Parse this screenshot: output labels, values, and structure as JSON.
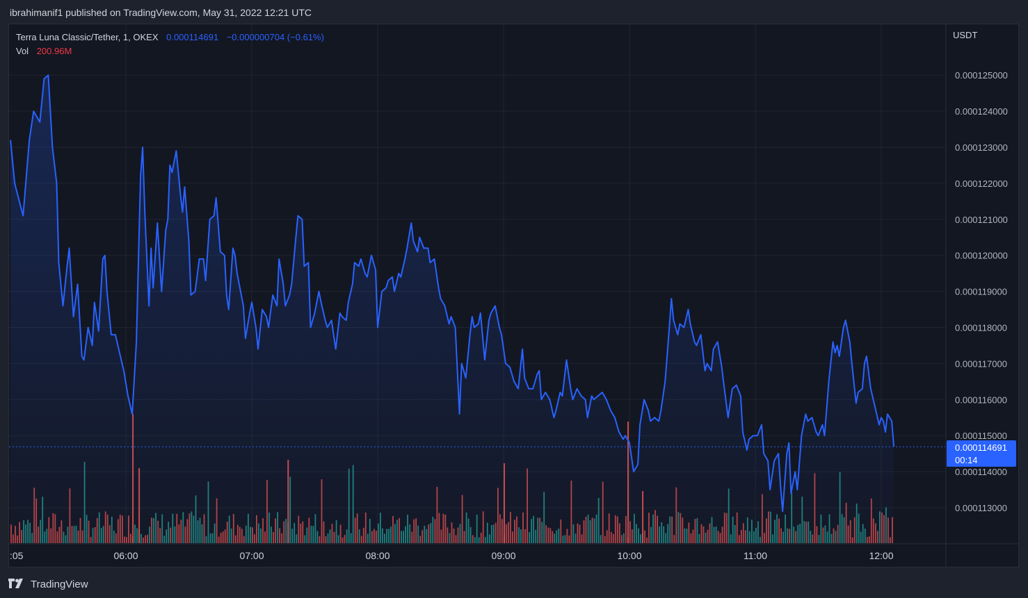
{
  "header": {
    "published_line": "ibrahimanif1 published on TradingView.com, May 31, 2022 12:21 UTC"
  },
  "legend": {
    "symbol": "Terra Luna Classic/Tether, 1, OKEX",
    "last_price": "0.000114691",
    "change": "−0.000000704 (−0.61%)",
    "vol_label": "Vol",
    "vol_value": "200.96M"
  },
  "price_scale": {
    "currency": "USDT",
    "current_price_label": "0.000114691",
    "countdown_label": "00:14"
  },
  "footer": {
    "brand": "TradingView"
  },
  "colors": {
    "line": "#2962ff",
    "up_volume": "#26a69a",
    "down_volume": "#ef5350",
    "background": "#131722",
    "grid": "#2a2e39"
  },
  "chart_data": {
    "type": "line",
    "x_label": "",
    "y_label": "",
    "x_ticks": [
      ":05",
      "06:00",
      "07:00",
      "08:00",
      "09:00",
      "10:00",
      "11:00",
      "12:00"
    ],
    "y_ticks": [
      "0.000113000",
      "0.000114000",
      "0.000115000",
      "0.000116000",
      "0.000117000",
      "0.000118000",
      "0.000119000",
      "0.000120000",
      "0.000121000",
      "0.000122000",
      "0.000123000",
      "0.000124000",
      "0.000125000"
    ],
    "y_range": [
      0.0001122,
      0.0001264
    ],
    "x_range_minutes": [
      305,
      755
    ],
    "last_value": 0.000114691,
    "series_keypoints": [
      [
        305,
        0.0001232
      ],
      [
        307,
        0.000122
      ],
      [
        311,
        0.0001211
      ],
      [
        314,
        0.0001232
      ],
      [
        316,
        0.000124
      ],
      [
        319,
        0.0001237
      ],
      [
        321,
        0.0001249
      ],
      [
        323,
        0.000125
      ],
      [
        325,
        0.000123
      ],
      [
        327,
        0.000122
      ],
      [
        328,
        0.0001198
      ],
      [
        330,
        0.0001186
      ],
      [
        332,
        0.0001197
      ],
      [
        333,
        0.0001202
      ],
      [
        335,
        0.0001183
      ],
      [
        337,
        0.0001192
      ],
      [
        339,
        0.0001172
      ],
      [
        340,
        0.0001171
      ],
      [
        342,
        0.000118
      ],
      [
        344,
        0.0001175
      ],
      [
        345,
        0.0001187
      ],
      [
        347,
        0.0001179
      ],
      [
        349,
        0.0001199
      ],
      [
        350,
        0.00012
      ],
      [
        351,
        0.000119
      ],
      [
        353,
        0.0001178
      ],
      [
        355,
        0.0001178
      ],
      [
        357,
        0.0001173
      ],
      [
        359,
        0.0001168
      ],
      [
        361,
        0.0001161
      ],
      [
        363,
        0.0001156
      ],
      [
        365,
        0.0001176
      ],
      [
        367,
        0.0001222
      ],
      [
        368,
        0.000123
      ],
      [
        369,
        0.0001212
      ],
      [
        371,
        0.0001186
      ],
      [
        372,
        0.0001202
      ],
      [
        373,
        0.0001191
      ],
      [
        375,
        0.0001209
      ],
      [
        377,
        0.000119
      ],
      [
        379,
        0.0001207
      ],
      [
        380,
        0.000121
      ],
      [
        381,
        0.0001225
      ],
      [
        382,
        0.0001223
      ],
      [
        384,
        0.0001229
      ],
      [
        386,
        0.0001217
      ],
      [
        387,
        0.0001212
      ],
      [
        388,
        0.0001219
      ],
      [
        390,
        0.0001204
      ],
      [
        391,
        0.0001189
      ],
      [
        393,
        0.000119
      ],
      [
        395,
        0.0001199
      ],
      [
        397,
        0.0001199
      ],
      [
        398,
        0.0001193
      ],
      [
        400,
        0.000121
      ],
      [
        402,
        0.0001211
      ],
      [
        403,
        0.0001216
      ],
      [
        405,
        0.0001201
      ],
      [
        407,
        0.00012
      ],
      [
        408,
        0.0001189
      ],
      [
        409,
        0.0001185
      ],
      [
        411,
        0.0001202
      ],
      [
        412,
        0.00012
      ],
      [
        413,
        0.0001195
      ],
      [
        415,
        0.0001189
      ],
      [
        416,
        0.0001186
      ],
      [
        417,
        0.0001177
      ],
      [
        419,
        0.0001184
      ],
      [
        420,
        0.0001187
      ],
      [
        422,
        0.000118
      ],
      [
        423,
        0.0001174
      ],
      [
        425,
        0.0001185
      ],
      [
        427,
        0.0001183
      ],
      [
        428,
        0.000118
      ],
      [
        430,
        0.0001189
      ],
      [
        432,
        0.0001186
      ],
      [
        433,
        0.0001199
      ],
      [
        435,
        0.0001192
      ],
      [
        436,
        0.0001186
      ],
      [
        438,
        0.0001189
      ],
      [
        439,
        0.0001192
      ],
      [
        441,
        0.0001205
      ],
      [
        442,
        0.0001211
      ],
      [
        444,
        0.000121
      ],
      [
        445,
        0.0001197
      ],
      [
        447,
        0.0001198
      ],
      [
        448,
        0.000118
      ],
      [
        450,
        0.0001184
      ],
      [
        452,
        0.000119
      ],
      [
        453,
        0.0001187
      ],
      [
        455,
        0.0001182
      ],
      [
        456,
        0.000118
      ],
      [
        458,
        0.0001182
      ],
      [
        460,
        0.0001174
      ],
      [
        462,
        0.0001184
      ],
      [
        463,
        0.0001183
      ],
      [
        465,
        0.0001182
      ],
      [
        466,
        0.0001187
      ],
      [
        468,
        0.0001192
      ],
      [
        469,
        0.0001198
      ],
      [
        471,
        0.0001197
      ],
      [
        472,
        0.0001199
      ],
      [
        474,
        0.0001195
      ],
      [
        475,
        0.0001194
      ],
      [
        477,
        0.00012
      ],
      [
        479,
        0.0001196
      ],
      [
        480,
        0.000118
      ],
      [
        482,
        0.000119
      ],
      [
        484,
        0.0001191
      ],
      [
        485,
        0.0001193
      ],
      [
        487,
        0.0001194
      ],
      [
        488,
        0.000119
      ],
      [
        490,
        0.0001195
      ],
      [
        491,
        0.0001194
      ],
      [
        493,
        0.0001199
      ],
      [
        494,
        0.0001202
      ],
      [
        496,
        0.0001209
      ],
      [
        497,
        0.0001204
      ],
      [
        499,
        0.0001201
      ],
      [
        500,
        0.0001205
      ],
      [
        502,
        0.0001202
      ],
      [
        504,
        0.0001202
      ],
      [
        505,
        0.0001198
      ],
      [
        507,
        0.0001199
      ],
      [
        509,
        0.0001191
      ],
      [
        510,
        0.0001188
      ],
      [
        512,
        0.0001186
      ],
      [
        514,
        0.0001181
      ],
      [
        515,
        0.0001183
      ],
      [
        517,
        0.000118
      ],
      [
        519,
        0.0001156
      ],
      [
        520,
        0.000117
      ],
      [
        522,
        0.0001166
      ],
      [
        524,
        0.0001178
      ],
      [
        525,
        0.0001183
      ],
      [
        526,
        0.000118
      ],
      [
        528,
        0.0001181
      ],
      [
        529,
        0.0001184
      ],
      [
        531,
        0.0001171
      ],
      [
        533,
        0.0001182
      ],
      [
        534,
        0.0001184
      ],
      [
        536,
        0.0001186
      ],
      [
        538,
        0.000118
      ],
      [
        539,
        0.0001178
      ],
      [
        541,
        0.000117
      ],
      [
        543,
        0.0001169
      ],
      [
        545,
        0.0001165
      ],
      [
        547,
        0.0001163
      ],
      [
        549,
        0.0001174
      ],
      [
        550,
        0.0001166
      ],
      [
        552,
        0.0001163
      ],
      [
        554,
        0.0001163
      ],
      [
        556,
        0.0001167
      ],
      [
        557,
        0.0001168
      ],
      [
        558,
        0.000116
      ],
      [
        560,
        0.0001162
      ],
      [
        562,
        0.000116
      ],
      [
        564,
        0.0001155
      ],
      [
        565,
        0.0001157
      ],
      [
        567,
        0.0001162
      ],
      [
        568,
        0.0001161
      ],
      [
        570,
        0.0001171
      ],
      [
        572,
        0.0001163
      ],
      [
        573,
        0.000116
      ],
      [
        575,
        0.0001163
      ],
      [
        577,
        0.0001161
      ],
      [
        579,
        0.000116
      ],
      [
        580,
        0.0001155
      ],
      [
        582,
        0.0001161
      ],
      [
        583,
        0.000116
      ],
      [
        585,
        0.0001161
      ],
      [
        587,
        0.0001162
      ],
      [
        589,
        0.000116
      ],
      [
        591,
        0.0001157
      ],
      [
        593,
        0.0001155
      ],
      [
        595,
        0.0001151
      ],
      [
        597,
        0.0001149
      ],
      [
        598,
        0.000115
      ],
      [
        600,
        0.0001148
      ],
      [
        601,
        0.0001144
      ],
      [
        602,
        0.000114
      ],
      [
        604,
        0.0001142
      ],
      [
        605,
        0.0001153
      ],
      [
        607,
        0.000116
      ],
      [
        609,
        0.0001157
      ],
      [
        610,
        0.0001154
      ],
      [
        612,
        0.0001155
      ],
      [
        614,
        0.0001154
      ],
      [
        615,
        0.0001157
      ],
      [
        617,
        0.0001165
      ],
      [
        619,
        0.000118
      ],
      [
        620,
        0.0001188
      ],
      [
        621,
        0.0001182
      ],
      [
        623,
        0.0001178
      ],
      [
        624,
        0.0001181
      ],
      [
        626,
        0.000118
      ],
      [
        628,
        0.0001185
      ],
      [
        629,
        0.0001181
      ],
      [
        631,
        0.0001176
      ],
      [
        632,
        0.0001175
      ],
      [
        634,
        0.0001178
      ],
      [
        636,
        0.0001168
      ],
      [
        637,
        0.000117
      ],
      [
        639,
        0.0001168
      ],
      [
        640,
        0.0001174
      ],
      [
        642,
        0.0001176
      ],
      [
        644,
        0.0001169
      ],
      [
        645,
        0.0001164
      ],
      [
        647,
        0.0001155
      ],
      [
        649,
        0.0001163
      ],
      [
        651,
        0.0001164
      ],
      [
        653,
        0.0001161
      ],
      [
        654,
        0.0001151
      ],
      [
        656,
        0.0001146
      ],
      [
        657,
        0.0001149
      ],
      [
        659,
        0.000115
      ],
      [
        661,
        0.000115
      ],
      [
        663,
        0.0001153
      ],
      [
        664,
        0.0001145
      ],
      [
        666,
        0.0001143
      ],
      [
        667,
        0.0001135
      ],
      [
        669,
        0.0001143
      ],
      [
        671,
        0.0001145
      ],
      [
        672,
        0.0001136
      ],
      [
        673,
        0.0001129
      ],
      [
        675,
        0.0001145
      ],
      [
        676,
        0.0001148
      ],
      [
        677,
        0.0001134
      ],
      [
        679,
        0.000114
      ],
      [
        680,
        0.0001135
      ],
      [
        682,
        0.000115
      ],
      [
        684,
        0.0001156
      ],
      [
        685,
        0.0001154
      ],
      [
        687,
        0.0001155
      ],
      [
        689,
        0.0001151
      ],
      [
        690,
        0.000115
      ],
      [
        692,
        0.0001153
      ],
      [
        693,
        0.000115
      ],
      [
        695,
        0.0001165
      ],
      [
        697,
        0.0001176
      ],
      [
        698,
        0.0001173
      ],
      [
        699,
        0.0001175
      ],
      [
        700,
        0.0001172
      ],
      [
        702,
        0.000118
      ],
      [
        703,
        0.0001182
      ],
      [
        705,
        0.0001176
      ],
      [
        706,
        0.000117
      ],
      [
        708,
        0.0001159
      ],
      [
        709,
        0.0001162
      ],
      [
        711,
        0.0001163
      ],
      [
        712,
        0.000117
      ],
      [
        713,
        0.0001172
      ],
      [
        715,
        0.0001163
      ],
      [
        717,
        0.0001158
      ],
      [
        719,
        0.0001153
      ],
      [
        720,
        0.0001155
      ],
      [
        721,
        0.0001154
      ],
      [
        722,
        0.0001151
      ],
      [
        723,
        0.0001156
      ],
      [
        725,
        0.0001154
      ],
      [
        726,
        0.0001147
      ]
    ],
    "volume_range": [
      0,
      200
    ],
    "volume_bars_description_omitted": true
  }
}
